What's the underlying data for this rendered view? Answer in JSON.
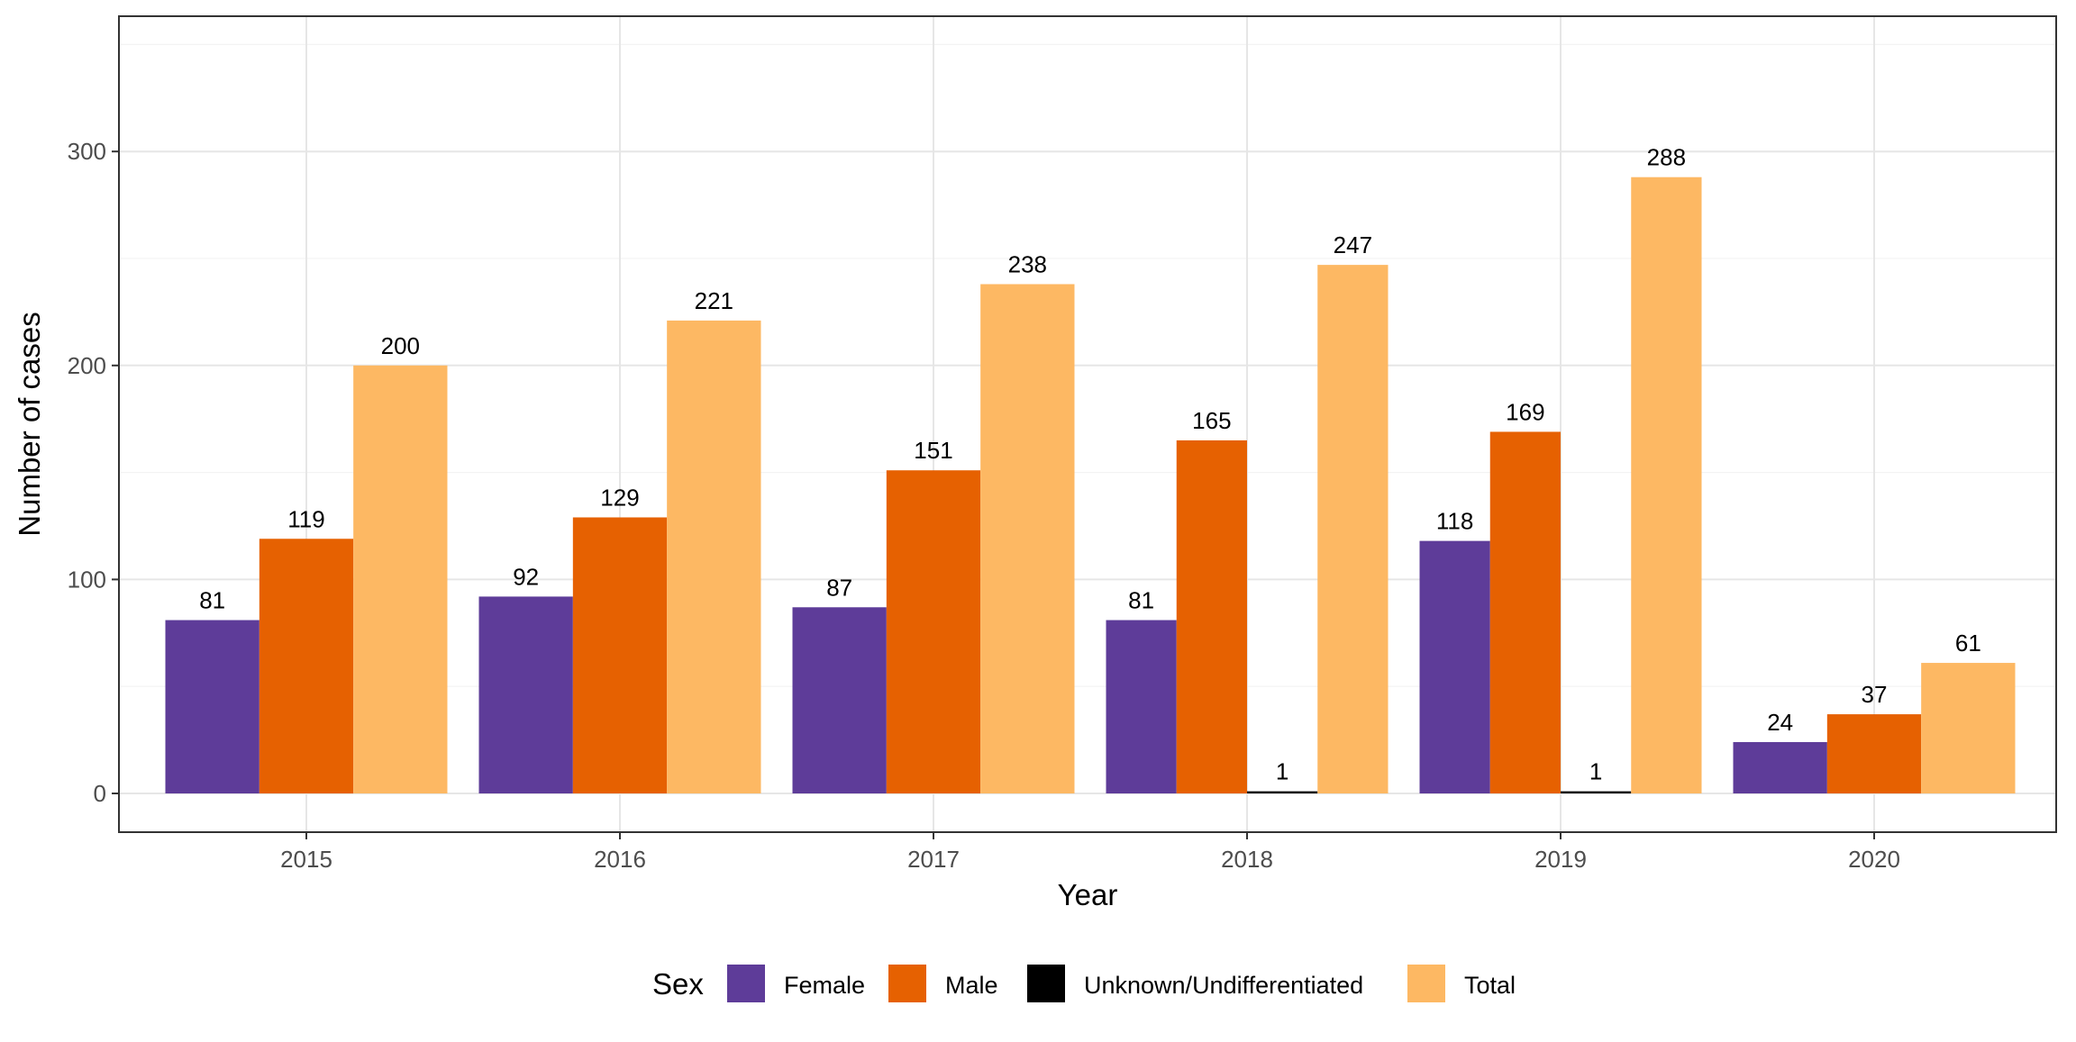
{
  "chart_data": {
    "type": "bar",
    "title": "",
    "xlabel": "Year",
    "ylabel": "Number of cases",
    "categories": [
      "2015",
      "2016",
      "2017",
      "2018",
      "2019",
      "2020"
    ],
    "ylim": [
      0,
      356
    ],
    "yticks": [
      0,
      100,
      200,
      300
    ],
    "ytick_labels": [
      "0",
      "100",
      "200",
      "300"
    ],
    "grid": true,
    "legend": {
      "title": "Sex",
      "position": "bottom"
    },
    "series": [
      {
        "name": "Female",
        "color": "#5e3c99",
        "values": [
          81,
          92,
          87,
          81,
          118,
          24
        ],
        "labels": [
          "81",
          "92",
          "87",
          "81",
          "118",
          "24"
        ]
      },
      {
        "name": "Male",
        "color": "#e66101",
        "values": [
          119,
          129,
          151,
          165,
          169,
          37
        ],
        "labels": [
          "119",
          "129",
          "151",
          "165",
          "169",
          "37"
        ]
      },
      {
        "name": "Unknown/Undifferentiated",
        "color": "#000000",
        "values": [
          null,
          null,
          null,
          1,
          1,
          null
        ],
        "labels": [
          null,
          null,
          null,
          "1",
          "1",
          null
        ]
      },
      {
        "name": "Total",
        "color": "#fdb863",
        "values": [
          200,
          221,
          238,
          247,
          288,
          61
        ],
        "labels": [
          "200",
          "221",
          "238",
          "247",
          "288",
          "61"
        ]
      }
    ]
  }
}
